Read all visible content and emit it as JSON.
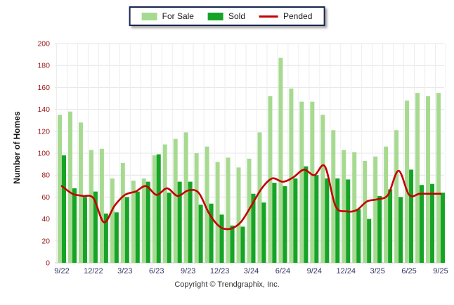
{
  "legend": {
    "for_sale_label": "For Sale",
    "sold_label": "Sold",
    "pended_label": "Pended"
  },
  "colors": {
    "for_sale": "#a7da91",
    "sold": "#16a427",
    "pended": "#c40000",
    "grid": "#e4e4e4",
    "grid_vertical": "#ededed",
    "baseline": "#c8c8c8",
    "y_tick_text": "#991111",
    "x_tick_text": "#333366"
  },
  "y_axis": {
    "title": "Number of Homes",
    "tick_labels": [
      "0",
      "20",
      "40",
      "60",
      "80",
      "100",
      "120",
      "140",
      "160",
      "180",
      "200"
    ]
  },
  "x_axis": {
    "visible_tick_labels": [
      "9/22",
      "12/22",
      "3/23",
      "6/23",
      "9/23",
      "12/23",
      "3/24",
      "6/24",
      "9/24",
      "12/24",
      "3/25",
      "6/25",
      "9/25"
    ]
  },
  "footer": {
    "copyright": "Copyright © Trendgraphix, Inc."
  },
  "chart_data": {
    "type": "bar",
    "title": "",
    "xlabel": "",
    "ylabel": "Number of Homes",
    "ylim": [
      0,
      200
    ],
    "y_step": 20,
    "grid": true,
    "legend_position": "top-center",
    "categories": [
      "9/22",
      "10/22",
      "11/22",
      "12/22",
      "1/23",
      "2/23",
      "3/23",
      "4/23",
      "5/23",
      "6/23",
      "7/23",
      "8/23",
      "9/23",
      "10/23",
      "11/23",
      "12/23",
      "1/24",
      "2/24",
      "3/24",
      "4/24",
      "5/24",
      "6/24",
      "7/24",
      "8/24",
      "9/24",
      "10/24",
      "11/24",
      "12/24",
      "1/25",
      "2/25",
      "3/25",
      "4/25",
      "5/25",
      "6/25",
      "7/25",
      "8/25",
      "9/25"
    ],
    "x_label_every": 3,
    "series": [
      {
        "name": "For Sale",
        "type": "bar",
        "values": [
          135,
          138,
          128,
          103,
          104,
          77,
          91,
          75,
          77,
          98,
          108,
          113,
          119,
          100,
          106,
          92,
          96,
          87,
          95,
          119,
          152,
          187,
          159,
          147,
          147,
          135,
          121,
          103,
          101,
          93,
          97,
          106,
          121,
          148,
          155,
          152,
          155
        ]
      },
      {
        "name": "Sold",
        "type": "bar",
        "values": [
          98,
          68,
          60,
          65,
          45,
          46,
          60,
          65,
          74,
          99,
          64,
          74,
          74,
          53,
          54,
          44,
          34,
          33,
          63,
          55,
          73,
          70,
          77,
          88,
          80,
          77,
          77,
          76,
          49,
          40,
          61,
          67,
          60,
          85,
          71,
          72,
          64
        ]
      },
      {
        "name": "Pended",
        "type": "line",
        "values": [
          70,
          63,
          61,
          59,
          37,
          52,
          62,
          65,
          70,
          62,
          68,
          61,
          66,
          64,
          45,
          33,
          31,
          37,
          52,
          68,
          77,
          74,
          78,
          85,
          80,
          88,
          52,
          47,
          48,
          56,
          58,
          62,
          84,
          62,
          63,
          63,
          63
        ]
      }
    ]
  }
}
